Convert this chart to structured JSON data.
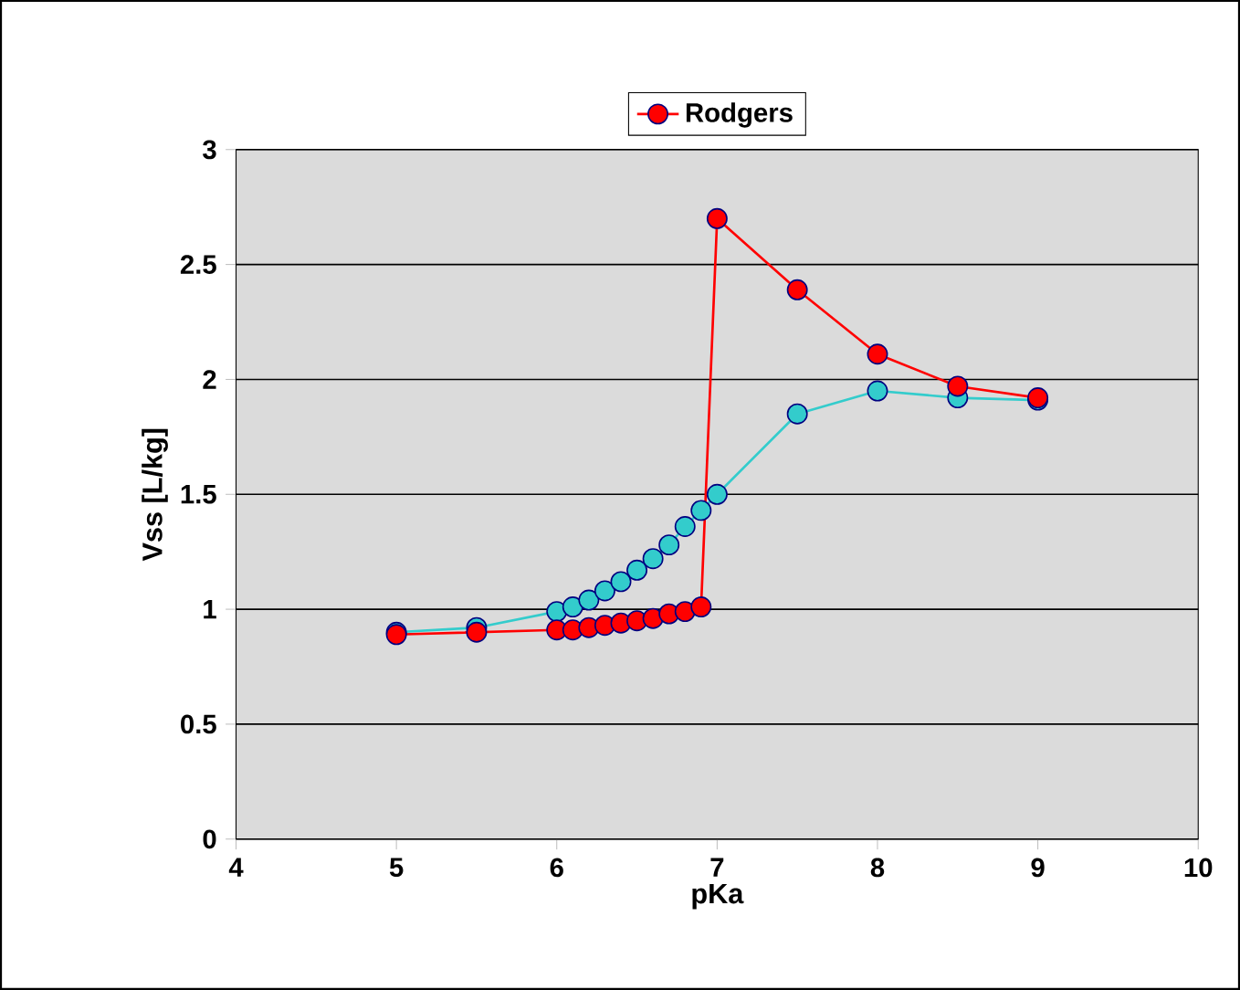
{
  "chart_data": {
    "type": "line",
    "xlabel": "pKa",
    "ylabel": "Vss [L/kg]",
    "x": [
      5,
      5.5,
      6,
      6.1,
      6.2,
      6.3,
      6.4,
      6.5,
      6.6,
      6.7,
      6.8,
      6.9,
      7,
      7.5,
      8,
      8.5,
      9
    ],
    "series": [
      {
        "color": "#33cccc",
        "values": [
          0.9,
          0.92,
          0.99,
          1.01,
          1.04,
          1.08,
          1.12,
          1.17,
          1.22,
          1.28,
          1.36,
          1.43,
          1.5,
          1.85,
          1.95,
          1.92,
          1.91
        ]
      },
      {
        "name": "Rodgers",
        "color": "#ff0000",
        "values": [
          0.89,
          0.9,
          0.91,
          0.91,
          0.92,
          0.93,
          0.94,
          0.95,
          0.96,
          0.98,
          0.99,
          1.01,
          2.7,
          2.39,
          2.11,
          1.97,
          1.92
        ]
      }
    ],
    "xlim": [
      4,
      10
    ],
    "xticks": [
      4,
      5,
      6,
      7,
      8,
      9,
      10
    ],
    "ylim": [
      0,
      3
    ],
    "yticks": [
      0,
      0.5,
      1,
      1.5,
      2,
      2.5,
      3
    ],
    "grid": "y",
    "legend": "top",
    "marker": "circle"
  }
}
